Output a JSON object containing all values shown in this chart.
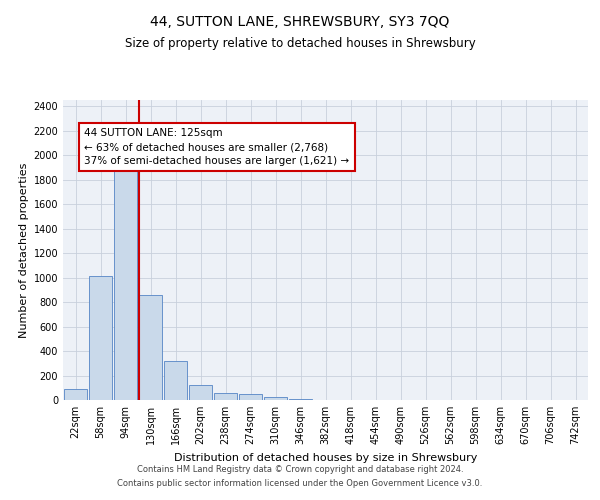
{
  "title": "44, SUTTON LANE, SHREWSBURY, SY3 7QQ",
  "subtitle": "Size of property relative to detached houses in Shrewsbury",
  "xlabel": "Distribution of detached houses by size in Shrewsbury",
  "ylabel": "Number of detached properties",
  "bar_labels": [
    "22sqm",
    "58sqm",
    "94sqm",
    "130sqm",
    "166sqm",
    "202sqm",
    "238sqm",
    "274sqm",
    "310sqm",
    "346sqm",
    "382sqm",
    "418sqm",
    "454sqm",
    "490sqm",
    "526sqm",
    "562sqm",
    "598sqm",
    "634sqm",
    "670sqm",
    "706sqm",
    "742sqm"
  ],
  "bar_values": [
    90,
    1010,
    1880,
    860,
    315,
    120,
    55,
    45,
    22,
    12,
    0,
    0,
    0,
    0,
    0,
    0,
    0,
    0,
    0,
    0,
    0
  ],
  "bar_color": "#c9d9ea",
  "bar_edge_color": "#5585c5",
  "red_line_color": "#cc0000",
  "annotation_line1": "44 SUTTON LANE: 125sqm",
  "annotation_line2": "← 63% of detached houses are smaller (2,768)",
  "annotation_line3": "37% of semi-detached houses are larger (1,621) →",
  "annotation_box_color": "white",
  "annotation_box_edge": "#cc0000",
  "ylim": [
    0,
    2450
  ],
  "yticks": [
    0,
    200,
    400,
    600,
    800,
    1000,
    1200,
    1400,
    1600,
    1800,
    2000,
    2200,
    2400
  ],
  "grid_color": "#c8d0dc",
  "background_color": "#edf1f7",
  "footer_line1": "Contains HM Land Registry data © Crown copyright and database right 2024.",
  "footer_line2": "Contains public sector information licensed under the Open Government Licence v3.0.",
  "title_fontsize": 10,
  "subtitle_fontsize": 8.5,
  "axis_label_fontsize": 8,
  "tick_fontsize": 7,
  "footer_fontsize": 6,
  "annotation_fontsize": 7.5
}
